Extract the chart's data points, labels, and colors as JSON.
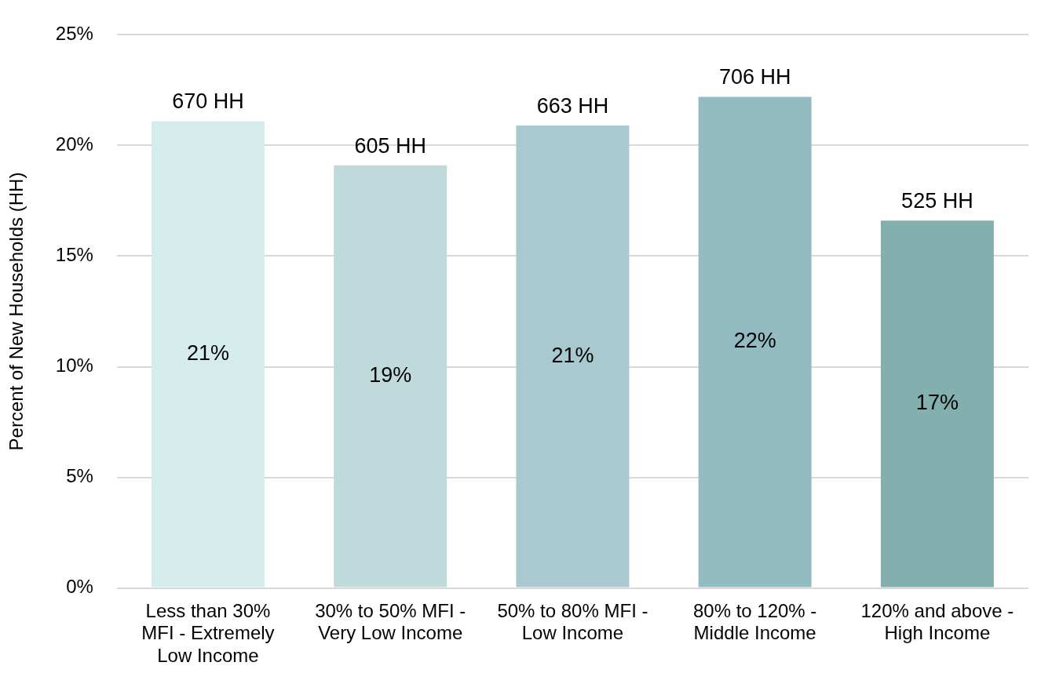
{
  "chart_data": {
    "type": "bar",
    "ylabel": "Percent of New Households (HH)",
    "categories": [
      "Less than 30% MFI - Extremely Low Income",
      "30% to 50% MFI - Very Low Income",
      "50% to 80% MFI - Low Income",
      "80% to 120% - Middle Income",
      "120% and above - High Income"
    ],
    "values": [
      21.1,
      19.1,
      20.9,
      22.2,
      16.6
    ],
    "colors": [
      "#d5ecec",
      "#c0dadb",
      "#a8c9cf",
      "#93bcc2",
      "#83afae"
    ],
    "value_labels": [
      "21%",
      "19%",
      "21%",
      "22%",
      "17%"
    ],
    "annotations": [
      {
        "text": "670 HH",
        "x": "Less than 30% MFI - Extremely Low Income",
        "y": 21.1
      },
      {
        "text": "605 HH",
        "x": "30% to 50% MFI - Very Low Income",
        "y": 19.1
      },
      {
        "text": "663 HH",
        "x": "50% to 80% MFI - Low Income",
        "y": 20.9
      },
      {
        "text": "706 HH",
        "x": "80% to 120% - Middle Income",
        "y": 22.2
      },
      {
        "text": "525 HH",
        "x": "120% and above - High Income",
        "y": 16.6
      }
    ],
    "ylim": [
      0,
      25
    ],
    "yticks": [
      {
        "value": 0,
        "label": "0%"
      },
      {
        "value": 5,
        "label": "5%"
      },
      {
        "value": 10,
        "label": "10%"
      },
      {
        "value": 15,
        "label": "15%"
      },
      {
        "value": 20,
        "label": "20%"
      },
      {
        "value": 25,
        "label": "25%"
      }
    ],
    "grid": "y",
    "legend": false
  }
}
